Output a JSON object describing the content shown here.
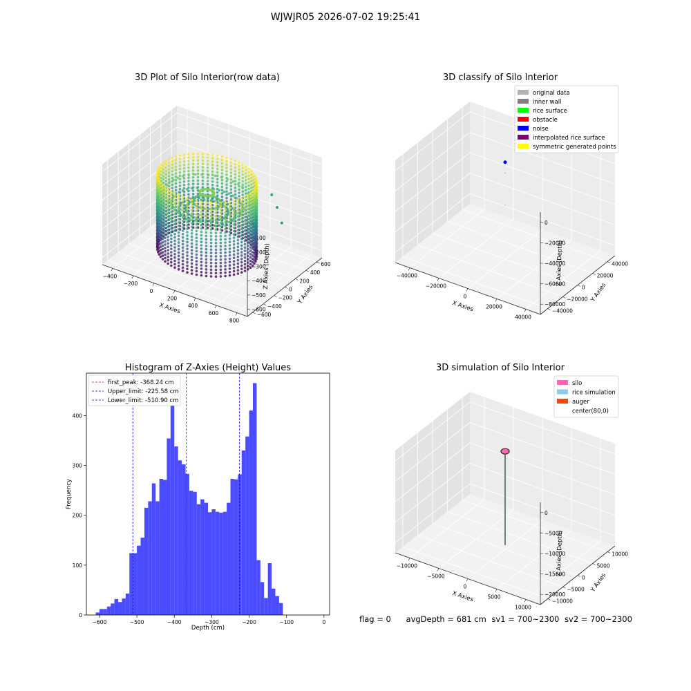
{
  "suptitle": "WJWJR05 2026-07-02 19:25:41",
  "chart_data": [
    {
      "type": "scatter",
      "subtype": "3d",
      "title": "3D Plot of Silo Interior(row data)",
      "xlabel": "X Axies",
      "ylabel": "Y Axies",
      "zlabel": "Z Axies (Depth)",
      "x_ticks": [
        "−400",
        "−200",
        "0",
        "200",
        "400",
        "600",
        "800"
      ],
      "y_ticks": [
        "−600",
        "−400",
        "−200",
        "0",
        "200",
        "400",
        "600"
      ],
      "z_ticks": [
        "0",
        "−100",
        "−200",
        "−300",
        "−400",
        "−500",
        "−600"
      ],
      "xlim": [
        -550,
        850
      ],
      "ylim": [
        -650,
        650
      ],
      "zlim": [
        -650,
        30
      ],
      "colormap": "viridis",
      "cylinder": {
        "cx": 100,
        "cy": 0,
        "r": 420,
        "z_top": -100,
        "z_bottom": -600
      },
      "outliers": [
        {
          "x": 500,
          "y": 500,
          "z": -350
        },
        {
          "x": 600,
          "y": 400,
          "z": -400
        },
        {
          "x": 420,
          "y": 550,
          "z": -300
        }
      ]
    },
    {
      "type": "scatter",
      "subtype": "3d",
      "title": "3D classify of Silo Interior",
      "xlabel": "X Axies",
      "ylabel": "Y Axies",
      "zlabel": "Z Axies (Depth)",
      "x_ticks": [
        "−40000",
        "−20000",
        "0",
        "20000",
        "40000"
      ],
      "y_ticks": [
        "−40000",
        "−20000",
        "0",
        "20000",
        "40000"
      ],
      "z_ticks": [
        "0",
        "−20000",
        "−40000",
        "−60000",
        "−80000"
      ],
      "xlim": [
        -45000,
        45000
      ],
      "ylim": [
        -45000,
        45000
      ],
      "zlim": [
        -90000,
        5000
      ],
      "legend": [
        {
          "label": "original data",
          "color": "#b3b3b3"
        },
        {
          "label": "inner wall",
          "color": "#808080"
        },
        {
          "label": "rice surface",
          "color": "#00ff00"
        },
        {
          "label": "obstacle",
          "color": "#ff0000"
        },
        {
          "label": "noise",
          "color": "#0000ff"
        },
        {
          "label": "interpolated rice surface",
          "color": "#800080"
        },
        {
          "label": "symmetric generated points",
          "color": "#ffff00"
        }
      ],
      "points": [
        {
          "x": 0,
          "y": 0,
          "z": 0,
          "color": "#0000ff",
          "size": 5
        },
        {
          "x": 0,
          "y": 0,
          "z": -10000,
          "color": "#444444",
          "size": 1
        },
        {
          "x": 0,
          "y": 0,
          "z": -40000,
          "color": "#444444",
          "size": 1
        }
      ]
    },
    {
      "type": "bar",
      "subtype": "histogram",
      "title": "Histogram of Z-Axies (Height) Values",
      "xlabel": "Depth (cm)",
      "ylabel": "Frequency",
      "bar_color": "#4b4bff",
      "xlim": [
        -635,
        15
      ],
      "ylim": [
        0,
        485
      ],
      "x_ticks": [
        -600,
        -500,
        -400,
        -300,
        -200,
        -100,
        0
      ],
      "y_ticks": [
        0,
        100,
        200,
        300,
        400
      ],
      "bin_start": -610,
      "bin_width": 10,
      "values": [
        5,
        12,
        12,
        17,
        23,
        32,
        26,
        33,
        43,
        124,
        124,
        139,
        155,
        215,
        228,
        264,
        228,
        273,
        271,
        354,
        433,
        338,
        310,
        302,
        283,
        249,
        247,
        222,
        232,
        225,
        206,
        212,
        207,
        205,
        207,
        225,
        273,
        272,
        282,
        330,
        358,
        410,
        465,
        110,
        66,
        34,
        104,
        53,
        38,
        24
      ],
      "lines": [
        {
          "label": "first_peak: -368.24 cm",
          "x": -368.24,
          "color": "#ff0000"
        },
        {
          "label": "Upper_limit: -225.58 cm",
          "x": -225.58,
          "color": "#0000ff"
        },
        {
          "label": "Lower_limit: -510.90 cm",
          "x": -510.9,
          "color": "#0000ff"
        }
      ]
    },
    {
      "type": "line",
      "subtype": "3d",
      "title": "3D simulation of Silo Interior",
      "xlabel": "X Axies",
      "ylabel": "Y Axies",
      "zlabel": "Z Axies (Depth)",
      "x_ticks": [
        "−10000",
        "−5000",
        "0",
        "5000",
        "10000"
      ],
      "y_ticks": [
        "−10000",
        "−5000",
        "0",
        "5000",
        "10000"
      ],
      "z_ticks": [
        "0",
        "−5000",
        "−10000",
        "−15000",
        "−20000"
      ],
      "xlim": [
        -12000,
        12000
      ],
      "ylim": [
        -12000,
        12000
      ],
      "zlim": [
        -23000,
        1000
      ],
      "legend": [
        {
          "label": "silo",
          "color": "#ff69b4"
        },
        {
          "label": "rice simulation",
          "color": "#87ceeb"
        },
        {
          "label": "auger",
          "color": "#ff4500"
        },
        {
          "label": "center(80,0)",
          "color": "#ffffff"
        }
      ]
    }
  ],
  "footer": {
    "flag": "flag = 0",
    "avg_depth": "avgDepth = 681 cm",
    "sv1": "sv1 = 700~2300",
    "sv2": "sv2 = 700~2300"
  }
}
